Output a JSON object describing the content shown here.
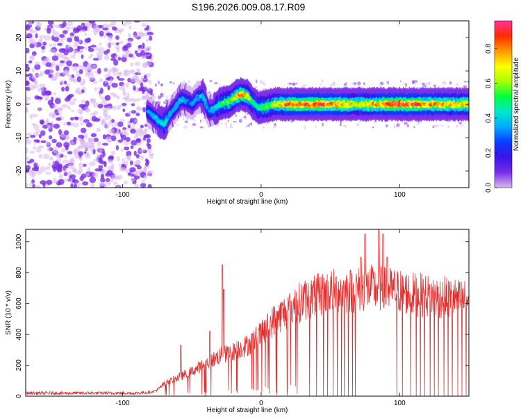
{
  "title": "S196.2026.009.08.17.R09",
  "colors": {
    "snr_line": "#e03030",
    "axis": "#000000",
    "cmap": [
      "#d8b8f0",
      "#7a2de8",
      "#3b14e6",
      "#0a3cff",
      "#00aaff",
      "#00e8c8",
      "#00ff40",
      "#a8ff00",
      "#ffff00",
      "#ff9900",
      "#ff2a00",
      "#ff3399"
    ]
  },
  "chart_data": [
    {
      "type": "heatmap",
      "title": "S196.2026.009.08.17.R09",
      "xlabel": "Height of straight line (km)",
      "ylabel": "Frequency (Hz)",
      "xlim": [
        -170,
        150
      ],
      "ylim": [
        -25,
        25
      ],
      "xticks": [
        -100,
        0,
        100
      ],
      "yticks": [
        -20,
        -10,
        0,
        10,
        20
      ],
      "colorbar": {
        "label": "Normalized spectral amplitude",
        "range": [
          0,
          0.96
        ],
        "ticks": [
          "0.0",
          "0.2",
          "0.4",
          "0.6",
          "0.8"
        ]
      },
      "ridge": {
        "description_free": true,
        "x": [
          -82,
          -78,
          -74,
          -70,
          -66,
          -62,
          -58,
          -54,
          -50,
          -46,
          -42,
          -38,
          -34,
          -30,
          -26,
          -22,
          -18,
          -14,
          -10,
          -6,
          -2,
          2,
          10,
          20,
          40,
          60,
          70,
          80,
          100,
          120,
          150
        ],
        "y": [
          -2,
          -3.5,
          -5,
          -6,
          -3,
          -1,
          1.5,
          1,
          0,
          2,
          2.5,
          -2,
          -1.5,
          0,
          0.5,
          1,
          2.5,
          3,
          2.5,
          0.5,
          -1,
          -0.8,
          0,
          0,
          0,
          0,
          0,
          0,
          0,
          0,
          0
        ],
        "amplitude": [
          0.3,
          0.35,
          0.4,
          0.45,
          0.35,
          0.35,
          0.4,
          0.35,
          0.3,
          0.35,
          0.4,
          0.35,
          0.4,
          0.5,
          0.55,
          0.6,
          0.75,
          0.85,
          0.7,
          0.5,
          0.45,
          0.55,
          0.65,
          0.85,
          0.9,
          0.8,
          0.7,
          0.75,
          0.95,
          0.8,
          0.75
        ]
      },
      "noise_region_x": [
        -170,
        -82
      ]
    },
    {
      "type": "line",
      "xlabel": "Height of straight line (km)",
      "ylabel": "SNR (10 * v/v)",
      "xlim": [
        -170,
        150
      ],
      "ylim": [
        0,
        1080
      ],
      "xticks": [
        -100,
        0,
        100
      ],
      "yticks": [
        0,
        200,
        400,
        600,
        800,
        1000
      ],
      "envelope": {
        "x": [
          -170,
          -90,
          -80,
          -75,
          -70,
          -60,
          -50,
          -40,
          -30,
          -20,
          -10,
          0,
          10,
          20,
          30,
          40,
          50,
          60,
          70,
          80,
          90,
          100,
          110,
          120,
          130,
          150
        ],
        "y": [
          20,
          20,
          25,
          40,
          80,
          120,
          160,
          210,
          260,
          290,
          330,
          400,
          500,
          560,
          620,
          650,
          680,
          680,
          690,
          700,
          690,
          680,
          660,
          650,
          640,
          620
        ]
      },
      "spikes": [
        {
          "x": -58,
          "y": 330
        },
        {
          "x": -37,
          "y": 420
        },
        {
          "x": -28,
          "y": 850
        },
        {
          "x": -27,
          "y": 690
        },
        {
          "x": 72,
          "y": 900
        },
        {
          "x": 75,
          "y": 1050
        },
        {
          "x": 85,
          "y": 1080
        },
        {
          "x": 88,
          "y": 1050
        },
        {
          "x": 91,
          "y": 900
        }
      ],
      "dropouts_x": [
        35,
        40,
        45,
        48,
        52,
        55,
        58,
        60,
        63,
        66,
        68,
        98,
        102,
        108,
        112,
        115,
        118,
        122,
        125,
        128,
        132,
        135,
        138,
        142,
        145,
        148
      ]
    }
  ]
}
